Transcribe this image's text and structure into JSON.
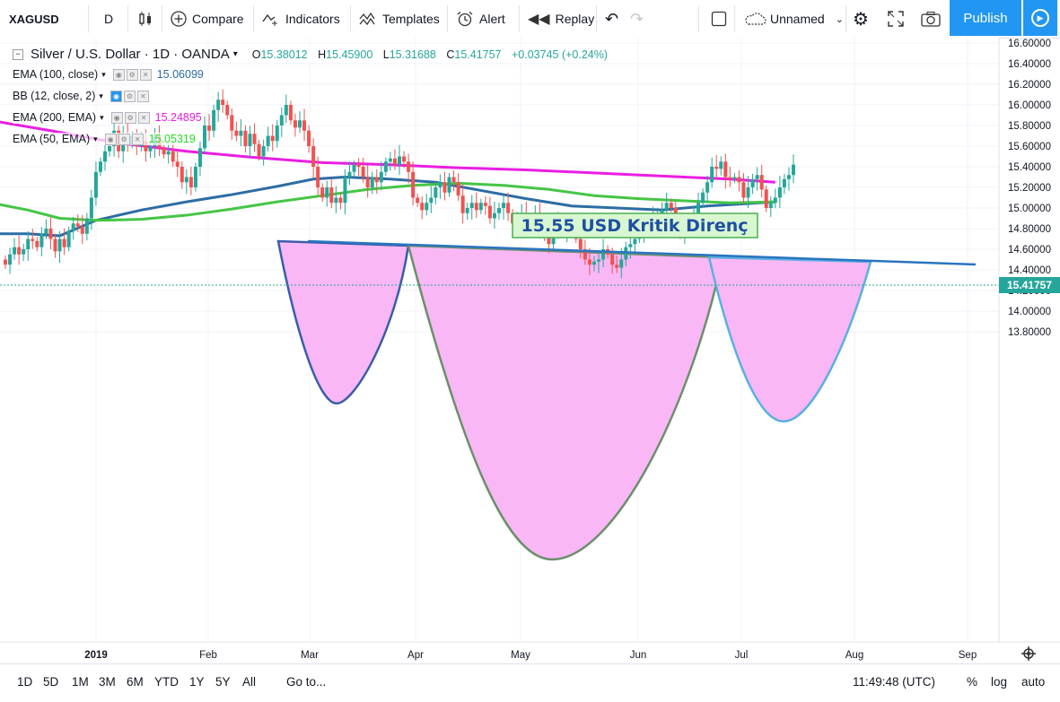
{
  "toolbar": {
    "symbol": "XAGUSD",
    "interval": "D",
    "compare": "Compare",
    "indicators": "Indicators",
    "templates": "Templates",
    "alert": "Alert",
    "replay": "Replay",
    "layout_name": "Unnamed",
    "publish": "Publish"
  },
  "legend": {
    "title": "Silver / U.S. Dollar · 1D · OANDA",
    "ohlc": {
      "o_label": "O",
      "o": "15.38012",
      "h_label": "H",
      "h": "15.45900",
      "l_label": "L",
      "l": "15.31688",
      "c_label": "C",
      "c": "15.41757",
      "change": "+0.03745 (+0.24%)"
    },
    "indicators": [
      {
        "label": "EMA (100, close)",
        "value": "15.06099",
        "color": "#2c6da4"
      },
      {
        "label": "BB (12, close, 2)",
        "value": "",
        "color": "#2196f3"
      },
      {
        "label": "EMA (200, EMA)",
        "value": "15.24895",
        "color": "#e91ee3"
      },
      {
        "label": "EMA (50, EMA)",
        "value": "15.05319",
        "color": "#22dd22"
      }
    ]
  },
  "annotation": {
    "text": "15.55 USD Kritik Direnç"
  },
  "last_price": "15.41757",
  "bottom": {
    "ranges": [
      "1D",
      "5D",
      "1M",
      "3M",
      "6M",
      "YTD",
      "1Y",
      "5Y",
      "All"
    ],
    "goto": "Go to...",
    "time": "11:49:48 (UTC)",
    "percent": "%",
    "log": "log",
    "auto": "auto"
  },
  "chart_data": {
    "type": "candlestick",
    "y_ticks": [
      "16.60000",
      "16.40000",
      "16.20000",
      "16.00000",
      "15.80000",
      "15.60000",
      "15.40000",
      "15.20000",
      "15.00000",
      "14.80000",
      "14.60000",
      "14.40000",
      "14.20000",
      "14.00000",
      "13.80000"
    ],
    "ylim": [
      13.72,
      16.62
    ],
    "x_ticks": [
      "2019",
      "Feb",
      "Mar",
      "Apr",
      "May",
      "Jun",
      "Jul",
      "Aug",
      "Sep"
    ],
    "colors": {
      "up": "#26a69a",
      "down": "#ef5350",
      "ema100": "#2c6da4",
      "ema200": "#e91ee3",
      "ema50": "#45c545",
      "shape_fill": "#f9b7f5"
    },
    "closes": [
      14.45,
      14.55,
      14.62,
      14.55,
      14.6,
      14.7,
      14.68,
      14.62,
      14.75,
      14.8,
      14.7,
      14.58,
      14.7,
      14.62,
      14.78,
      14.85,
      14.82,
      14.75,
      14.9,
      15.1,
      15.35,
      15.45,
      15.55,
      15.6,
      15.75,
      15.55,
      15.72,
      15.62,
      15.7,
      15.6,
      15.65,
      15.55,
      15.6,
      15.7,
      15.58,
      15.52,
      15.55,
      15.45,
      15.4,
      15.25,
      15.3,
      15.2,
      15.4,
      15.58,
      15.8,
      15.75,
      15.95,
      16.05,
      16.0,
      15.9,
      15.75,
      15.7,
      15.75,
      15.6,
      15.72,
      15.62,
      15.5,
      15.6,
      15.7,
      15.65,
      15.8,
      15.9,
      16.0,
      15.85,
      15.78,
      15.85,
      15.75,
      15.6,
      15.4,
      15.2,
      15.1,
      15.2,
      15.05,
      15.1,
      15.05,
      15.3,
      15.35,
      15.42,
      15.4,
      15.3,
      15.2,
      15.3,
      15.25,
      15.35,
      15.45,
      15.48,
      15.42,
      15.5,
      15.45,
      15.35,
      15.1,
      15.05,
      14.98,
      15.05,
      15.1,
      15.2,
      15.25,
      15.15,
      15.3,
      15.25,
      15.12,
      14.95,
      15.0,
      15.05,
      14.98,
      15.05,
      15.02,
      14.9,
      14.95,
      15.0,
      15.05,
      14.95,
      14.85,
      14.9,
      14.95,
      14.82,
      14.9,
      14.95,
      14.78,
      14.72,
      14.65,
      14.8,
      14.85,
      14.78,
      14.82,
      14.85,
      14.7,
      14.6,
      14.5,
      14.45,
      14.48,
      14.5,
      14.6,
      14.55,
      14.45,
      14.42,
      14.5,
      14.62,
      14.65,
      14.7,
      14.75,
      14.8,
      14.85,
      14.9,
      14.95,
      14.98,
      15.05,
      15.0,
      14.85,
      14.75,
      14.82,
      14.88,
      14.95,
      15.05,
      15.15,
      15.25,
      15.4,
      15.38,
      15.45,
      15.3,
      15.28,
      15.3,
      15.25,
      15.1,
      15.2,
      15.28,
      15.32,
      15.18,
      15.0,
      15.05,
      15.1,
      15.2,
      15.28,
      15.32,
      15.42
    ]
  }
}
